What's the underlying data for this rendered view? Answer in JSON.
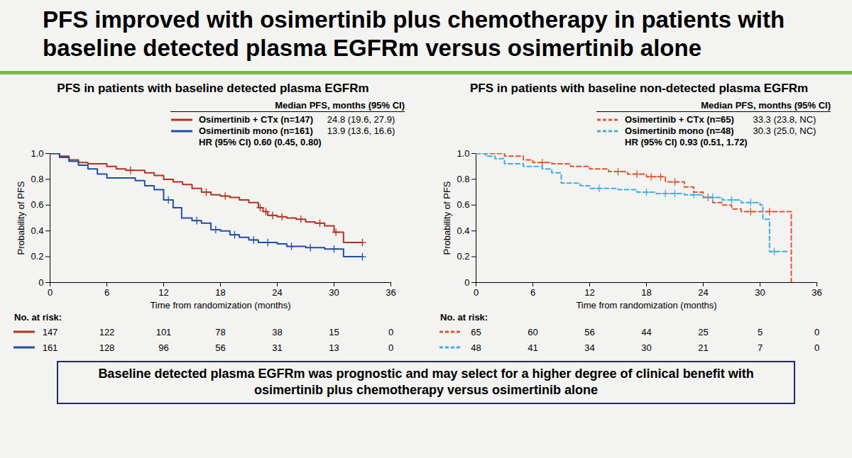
{
  "title": "PFS improved with osimertinib plus chemotherapy in patients with baseline detected plasma EGFRm versus osimertinib alone",
  "footer": "Baseline detected plasma EGFRm was prognostic and may select for a higher degree of clinical benefit with osimertinib plus chemotherapy versus osimertinib alone",
  "chart_data": [
    {
      "type": "line",
      "title": "PFS in patients with baseline detected plasma EGFRm",
      "legend_title": "Median PFS, months (95% CI)",
      "annotation": "HR (95% CI) 0.60 (0.45, 0.80)",
      "x_label": "Time from randomization (months)",
      "y_label": "Probability of PFS",
      "xlim": [
        0,
        36
      ],
      "xticks": [
        0,
        6,
        12,
        18,
        24,
        30,
        36
      ],
      "ylim": [
        0,
        1
      ],
      "yticks": [
        0,
        0.2,
        0.4,
        0.6,
        0.8,
        {
          "value": 1,
          "label": "1.0"
        }
      ],
      "at_risk_label": "No. at risk:",
      "series": [
        {
          "name": "Osimertinib + CTx (n=147)",
          "color": "#b3321f",
          "line_style": "solid",
          "marker": "plus",
          "median_pfs": "24.8 (19.6, 27.9)",
          "x": [
            0,
            1,
            2,
            3,
            4,
            6,
            7,
            8,
            10,
            11,
            12,
            13,
            14,
            15,
            16,
            17,
            18,
            19,
            20,
            21,
            22,
            22.5,
            23,
            24,
            25,
            26,
            27,
            28,
            29,
            30,
            31,
            33
          ],
          "values": [
            1,
            0.98,
            0.95,
            0.93,
            0.92,
            0.9,
            0.88,
            0.87,
            0.85,
            0.83,
            0.8,
            0.78,
            0.76,
            0.73,
            0.7,
            0.68,
            0.67,
            0.66,
            0.64,
            0.62,
            0.58,
            0.55,
            0.52,
            0.51,
            0.5,
            0.49,
            0.47,
            0.46,
            0.44,
            0.39,
            0.31,
            0.31
          ],
          "censored": [
            8.5,
            16.5,
            18.5,
            22.2,
            22.8,
            23.5,
            24.5,
            26.5,
            28.5,
            30.2,
            33
          ],
          "at_risk": [
            147,
            122,
            101,
            78,
            38,
            15,
            0
          ]
        },
        {
          "name": "Osimertinib mono (n=161)",
          "color": "#1f4fa6",
          "line_style": "solid",
          "marker": "plus",
          "median_pfs": "13.9 (13.6, 16.6)",
          "x": [
            0,
            1,
            2,
            3,
            4,
            5,
            6,
            9,
            10,
            11,
            12,
            13,
            13.9,
            15,
            16,
            17,
            18,
            19,
            20,
            21,
            22,
            24,
            25,
            27,
            29,
            31,
            33
          ],
          "values": [
            1,
            0.97,
            0.94,
            0.91,
            0.88,
            0.84,
            0.81,
            0.79,
            0.75,
            0.72,
            0.64,
            0.58,
            0.5,
            0.48,
            0.46,
            0.41,
            0.4,
            0.37,
            0.35,
            0.33,
            0.31,
            0.3,
            0.28,
            0.27,
            0.26,
            0.2,
            0.2
          ],
          "censored": [
            12.5,
            15.5,
            17.5,
            19.5,
            21.5,
            23,
            25.5,
            27.5,
            30,
            33
          ],
          "at_risk": [
            161,
            128,
            96,
            56,
            31,
            13,
            0
          ]
        }
      ]
    },
    {
      "type": "line",
      "title": "PFS in patients with baseline non-detected plasma EGFRm",
      "legend_title": "Median PFS, months (95% CI)",
      "annotation": "HR (95% CI) 0.93 (0.51, 1.72)",
      "x_label": "Time from randomization (months)",
      "y_label": "Probability of PFS",
      "xlim": [
        0,
        36
      ],
      "xticks": [
        0,
        6,
        12,
        18,
        24,
        30,
        36
      ],
      "ylim": [
        0,
        1
      ],
      "yticks": [
        0,
        0.2,
        0.4,
        0.6,
        0.8,
        {
          "value": 1,
          "label": "1.0"
        }
      ],
      "at_risk_label": "No. at risk:",
      "series": [
        {
          "name": "Osimertinib + CTx (n=65)",
          "color": "#e0552c",
          "line_style": "dashed",
          "marker": "plus",
          "median_pfs": "33.3 (23.8, NC)",
          "x": [
            0,
            2,
            3,
            5,
            6,
            8,
            10,
            12,
            14,
            16,
            18,
            20,
            22,
            23,
            24,
            25,
            26,
            27,
            28,
            33.3
          ],
          "values": [
            1,
            1,
            0.98,
            0.95,
            0.93,
            0.92,
            0.9,
            0.88,
            0.86,
            0.84,
            0.82,
            0.78,
            0.74,
            0.7,
            0.66,
            0.62,
            0.6,
            0.57,
            0.55,
            0
          ],
          "censored": [
            7,
            15,
            17,
            18.5,
            19.5,
            21,
            24.5,
            29,
            31
          ],
          "at_risk": [
            65,
            60,
            56,
            44,
            25,
            5,
            0
          ]
        },
        {
          "name": "Osimertinib mono (n=48)",
          "color": "#3eaee0",
          "line_style": "dashed",
          "marker": "plus",
          "median_pfs": "30.3 (25.0, NC)",
          "x": [
            0,
            1,
            2,
            3,
            5,
            7,
            8,
            9,
            11,
            12,
            15,
            17,
            19,
            22,
            24,
            26,
            28,
            30,
            30.3,
            31,
            33
          ],
          "values": [
            1,
            0.98,
            0.96,
            0.92,
            0.9,
            0.88,
            0.85,
            0.77,
            0.75,
            0.73,
            0.72,
            0.7,
            0.69,
            0.68,
            0.66,
            0.64,
            0.62,
            0.6,
            0.49,
            0.24,
            0.24
          ],
          "censored": [
            13,
            18,
            20,
            21,
            23,
            25,
            27,
            29,
            31.5
          ],
          "at_risk": [
            48,
            41,
            34,
            30,
            21,
            7,
            0
          ]
        }
      ]
    }
  ]
}
